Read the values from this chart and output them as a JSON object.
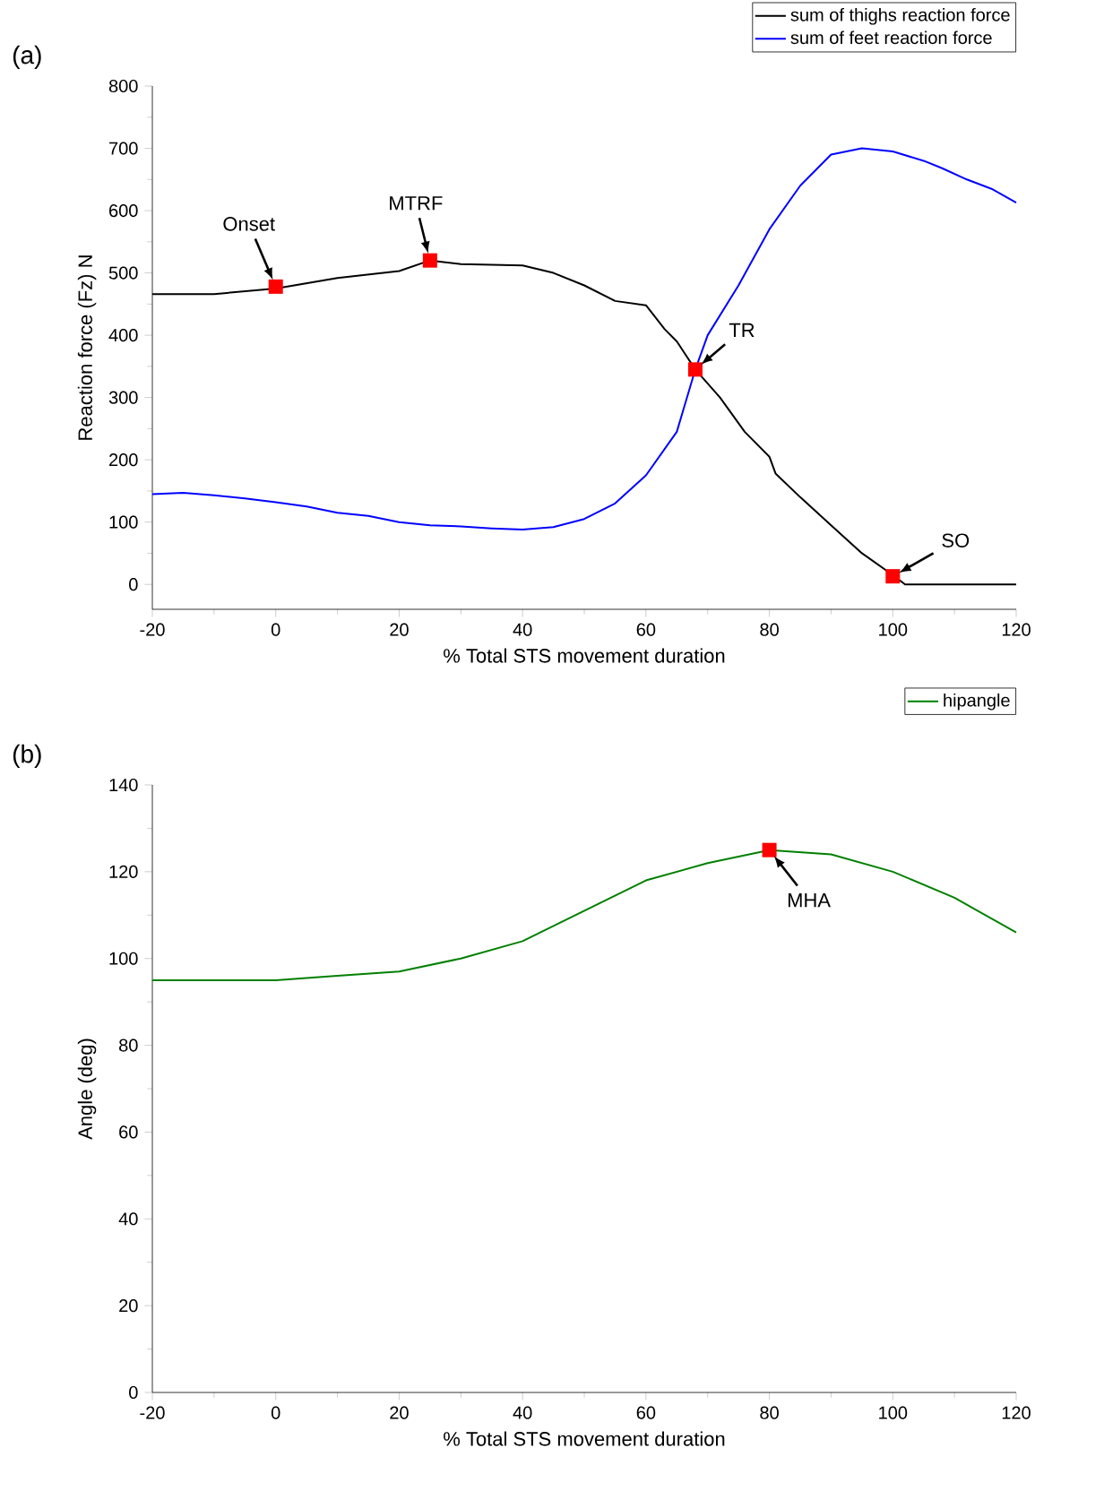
{
  "chart_data": [
    {
      "type": "line",
      "title": "(a)",
      "xlabel": "% Total STS movement duration",
      "ylabel": "Reaction force (Fz) N",
      "xlim": [
        -20,
        120
      ],
      "ylim": [
        -40,
        800
      ],
      "xticks": [
        -20,
        0,
        20,
        40,
        60,
        80,
        100,
        120
      ],
      "yticks": [
        0,
        100,
        200,
        300,
        400,
        500,
        600,
        700,
        800
      ],
      "legend": "top right",
      "marker": "none",
      "line_style": "solid",
      "series": [
        {
          "name": "sum of thighs reaction force",
          "color": "#000000",
          "x": [
            -20,
            -10,
            0,
            10,
            20,
            25,
            30,
            40,
            45,
            50,
            55,
            60,
            63,
            65,
            68,
            72,
            76,
            80,
            81,
            85,
            90,
            95,
            100,
            102,
            120
          ],
          "values": [
            466,
            466,
            475,
            492,
            503,
            520,
            514,
            512,
            500,
            480,
            455,
            448,
            410,
            390,
            345,
            300,
            245,
            205,
            178,
            140,
            95,
            50,
            15,
            0,
            0
          ]
        },
        {
          "name": "sum of feet reaction force",
          "color": "#0000ff",
          "x": [
            -20,
            -15,
            -10,
            -5,
            0,
            5,
            10,
            15,
            20,
            25,
            30,
            35,
            40,
            45,
            50,
            55,
            60,
            65,
            68,
            70,
            75,
            80,
            85,
            90,
            95,
            100,
            105,
            108,
            112,
            116,
            120
          ],
          "values": [
            145,
            147,
            143,
            138,
            132,
            125,
            115,
            110,
            100,
            95,
            93,
            90,
            88,
            92,
            105,
            130,
            175,
            245,
            345,
            400,
            480,
            570,
            640,
            690,
            700,
            695,
            680,
            668,
            650,
            635,
            613
          ]
        }
      ],
      "annotations": [
        {
          "text": "Onset",
          "x": 0,
          "y": 478
        },
        {
          "text": "MTRF",
          "x": 25,
          "y": 520
        },
        {
          "text": "TR",
          "x": 68,
          "y": 345
        },
        {
          "text": "SO",
          "x": 100,
          "y": 13
        }
      ]
    },
    {
      "type": "line",
      "title": "(b)",
      "xlabel": "% Total STS movement duration",
      "ylabel": "Angle (deg)",
      "xlim": [
        -20,
        120
      ],
      "ylim": [
        0,
        140
      ],
      "xticks": [
        -20,
        0,
        20,
        40,
        60,
        80,
        100,
        120
      ],
      "yticks": [
        0,
        20,
        40,
        60,
        80,
        100,
        120,
        140
      ],
      "legend": "top right",
      "marker": "none",
      "line_style": "solid",
      "series": [
        {
          "name": "hipangle",
          "color": "#008000",
          "x": [
            -20,
            -10,
            0,
            10,
            20,
            30,
            40,
            50,
            60,
            70,
            80,
            90,
            100,
            110,
            120
          ],
          "values": [
            95,
            95,
            95,
            96,
            97,
            100,
            104,
            111,
            118,
            122,
            125,
            124,
            120,
            114,
            106
          ]
        }
      ],
      "annotations": [
        {
          "text": "MHA",
          "x": 80,
          "y": 125
        }
      ]
    }
  ]
}
